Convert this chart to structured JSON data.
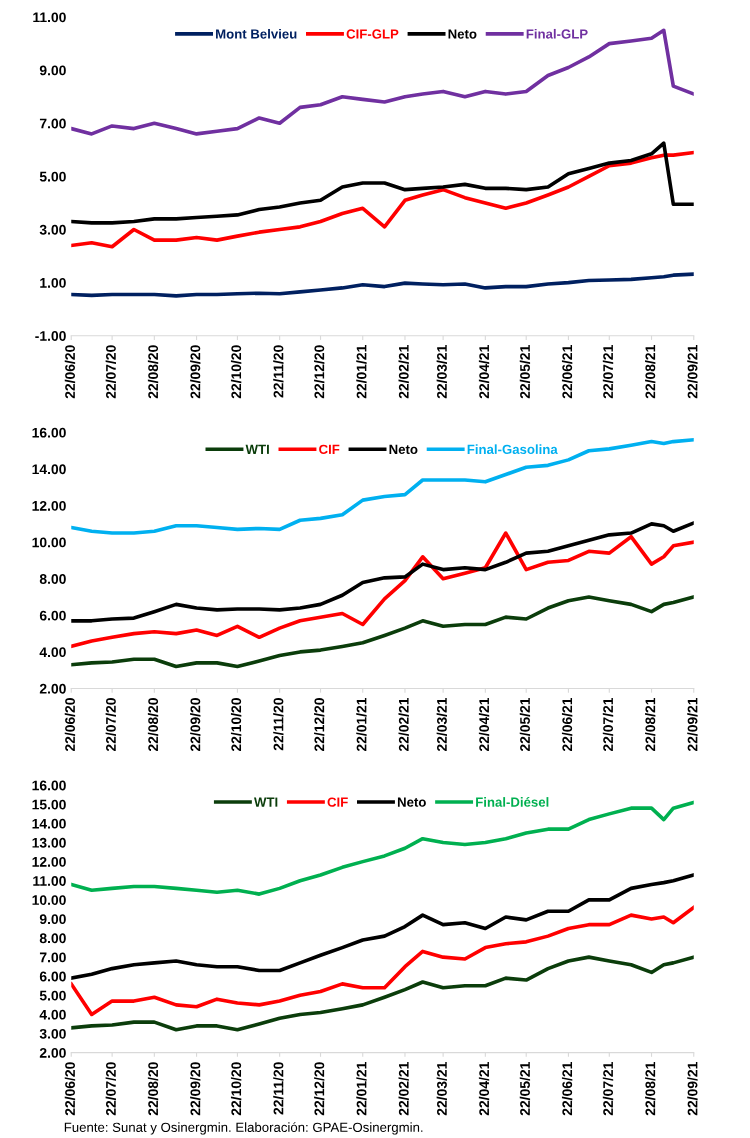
{
  "chart_data": [
    {
      "type": "line",
      "legend": "top",
      "grid": false,
      "marker": "none",
      "line_style": "solid",
      "x": [
        "2020-06-22",
        "2020-07-07",
        "2020-07-22",
        "2020-08-07",
        "2020-08-22",
        "2020-09-07",
        "2020-09-22",
        "2020-10-07",
        "2020-10-22",
        "2020-11-07",
        "2020-11-22",
        "2020-12-07",
        "2020-12-22",
        "2021-01-07",
        "2021-01-22",
        "2021-02-07",
        "2021-02-22",
        "2021-03-07",
        "2021-03-22",
        "2021-04-07",
        "2021-04-22",
        "2021-05-07",
        "2021-05-22",
        "2021-06-07",
        "2021-06-22",
        "2021-07-07",
        "2021-07-22",
        "2021-08-07",
        "2021-08-22",
        "2021-08-31",
        "2021-09-07",
        "2021-09-22"
      ],
      "xlim": [
        "2020-06-22",
        "2021-09-22"
      ],
      "xticks": [
        {
          "value": "2020-06-22",
          "label": "22/06/20"
        },
        {
          "value": "2020-07-22",
          "label": "22/07/20"
        },
        {
          "value": "2020-08-22",
          "label": "22/08/20"
        },
        {
          "value": "2020-09-22",
          "label": "22/09/20"
        },
        {
          "value": "2020-10-22",
          "label": "22/10/20"
        },
        {
          "value": "2020-11-22",
          "label": "22/11/20"
        },
        {
          "value": "2020-12-22",
          "label": "22/12/20"
        },
        {
          "value": "2021-01-22",
          "label": "22/01/21"
        },
        {
          "value": "2021-02-22",
          "label": "22/02/21"
        },
        {
          "value": "2021-03-22",
          "label": "22/03/21"
        },
        {
          "value": "2021-04-22",
          "label": "22/04/21"
        },
        {
          "value": "2021-05-22",
          "label": "22/05/21"
        },
        {
          "value": "2021-06-22",
          "label": "22/06/21"
        },
        {
          "value": "2021-07-22",
          "label": "22/07/21"
        },
        {
          "value": "2021-08-22",
          "label": "22/08/21"
        },
        {
          "value": "2021-09-22",
          "label": "22/09/21"
        }
      ],
      "ylim": [
        -1,
        11
      ],
      "yticks": [
        {
          "value": -1,
          "label": "-1.00"
        },
        {
          "value": 1,
          "label": "1.00"
        },
        {
          "value": 3,
          "label": "3.00"
        },
        {
          "value": 5,
          "label": "5.00"
        },
        {
          "value": 7,
          "label": "7.00"
        },
        {
          "value": 9,
          "label": "9.00"
        },
        {
          "value": 11,
          "label": "11.00"
        }
      ],
      "series": [
        {
          "name": "Mont Belvieu",
          "color": "#002060",
          "values": [
            0.55,
            0.52,
            0.55,
            0.55,
            0.55,
            0.5,
            0.55,
            0.55,
            0.58,
            0.6,
            0.58,
            0.65,
            0.72,
            0.8,
            0.92,
            0.85,
            0.98,
            0.95,
            0.92,
            0.95,
            0.8,
            0.85,
            0.85,
            0.95,
            1.0,
            1.08,
            1.1,
            1.12,
            1.18,
            1.22,
            1.28,
            1.32
          ]
        },
        {
          "name": "CIF-GLP",
          "color": "#ff0000",
          "values": [
            2.4,
            2.5,
            2.35,
            3.0,
            2.6,
            2.6,
            2.7,
            2.6,
            2.75,
            2.9,
            3.0,
            3.1,
            3.3,
            3.6,
            3.8,
            3.1,
            4.1,
            4.3,
            4.5,
            4.2,
            4.0,
            3.8,
            4.0,
            4.3,
            4.6,
            5.0,
            5.4,
            5.5,
            5.7,
            5.8,
            5.8,
            5.9
          ]
        },
        {
          "name": "Neto",
          "color": "#000000",
          "values": [
            3.3,
            3.25,
            3.25,
            3.3,
            3.4,
            3.4,
            3.45,
            3.5,
            3.55,
            3.75,
            3.85,
            4.0,
            4.1,
            4.6,
            4.75,
            4.75,
            4.5,
            4.55,
            4.6,
            4.7,
            4.55,
            4.55,
            4.5,
            4.6,
            5.1,
            5.3,
            5.5,
            5.6,
            5.85,
            6.25,
            3.95,
            3.95
          ]
        },
        {
          "name": "Final-GLP",
          "color": "#7030a0",
          "values": [
            6.8,
            6.6,
            6.9,
            6.8,
            7.0,
            6.8,
            6.6,
            6.7,
            6.8,
            7.2,
            7.0,
            7.6,
            7.7,
            8.0,
            7.9,
            7.8,
            8.0,
            8.1,
            8.2,
            8.0,
            8.2,
            8.1,
            8.2,
            8.8,
            9.1,
            9.5,
            10.0,
            10.1,
            10.2,
            10.5,
            8.4,
            8.1
          ]
        }
      ]
    },
    {
      "type": "line",
      "legend": "top",
      "grid": false,
      "marker": "none",
      "line_style": "solid",
      "x": [
        "2020-06-22",
        "2020-07-07",
        "2020-07-22",
        "2020-08-07",
        "2020-08-22",
        "2020-09-07",
        "2020-09-22",
        "2020-10-07",
        "2020-10-22",
        "2020-11-07",
        "2020-11-22",
        "2020-12-07",
        "2020-12-22",
        "2021-01-07",
        "2021-01-22",
        "2021-02-07",
        "2021-02-22",
        "2021-03-07",
        "2021-03-22",
        "2021-04-07",
        "2021-04-22",
        "2021-05-07",
        "2021-05-22",
        "2021-06-07",
        "2021-06-22",
        "2021-07-07",
        "2021-07-22",
        "2021-08-07",
        "2021-08-22",
        "2021-08-31",
        "2021-09-07",
        "2021-09-22"
      ],
      "xlim": [
        "2020-06-22",
        "2021-09-22"
      ],
      "xticks": [
        {
          "value": "2020-06-22",
          "label": "22/06/20"
        },
        {
          "value": "2020-07-22",
          "label": "22/07/20"
        },
        {
          "value": "2020-08-22",
          "label": "22/08/20"
        },
        {
          "value": "2020-09-22",
          "label": "22/09/20"
        },
        {
          "value": "2020-10-22",
          "label": "22/10/20"
        },
        {
          "value": "2020-11-22",
          "label": "22/11/20"
        },
        {
          "value": "2020-12-22",
          "label": "22/12/20"
        },
        {
          "value": "2021-01-22",
          "label": "22/01/21"
        },
        {
          "value": "2021-02-22",
          "label": "22/02/21"
        },
        {
          "value": "2021-03-22",
          "label": "22/03/21"
        },
        {
          "value": "2021-04-22",
          "label": "22/04/21"
        },
        {
          "value": "2021-05-22",
          "label": "22/05/21"
        },
        {
          "value": "2021-06-22",
          "label": "22/06/21"
        },
        {
          "value": "2021-07-22",
          "label": "22/07/21"
        },
        {
          "value": "2021-08-22",
          "label": "22/08/21"
        },
        {
          "value": "2021-09-22",
          "label": "22/09/21"
        }
      ],
      "ylim": [
        2,
        16
      ],
      "yticks": [
        {
          "value": 2,
          "label": "2.00"
        },
        {
          "value": 4,
          "label": "4.00"
        },
        {
          "value": 6,
          "label": "6.00"
        },
        {
          "value": 8,
          "label": "8.00"
        },
        {
          "value": 10,
          "label": "10.00"
        },
        {
          "value": 12,
          "label": "12.00"
        },
        {
          "value": 14,
          "label": "14.00"
        },
        {
          "value": 16,
          "label": "16.00"
        }
      ],
      "series": [
        {
          "name": "WTI",
          "color": "#0b3d0b",
          "values": [
            3.3,
            3.4,
            3.45,
            3.6,
            3.6,
            3.2,
            3.4,
            3.4,
            3.2,
            3.5,
            3.8,
            4.0,
            4.1,
            4.3,
            4.5,
            4.9,
            5.3,
            5.7,
            5.4,
            5.5,
            5.5,
            5.9,
            5.8,
            6.4,
            6.8,
            7.0,
            6.8,
            6.6,
            6.2,
            6.6,
            6.7,
            7.0
          ]
        },
        {
          "name": "CIF",
          "color": "#ff0000",
          "values": [
            4.3,
            4.6,
            4.8,
            5.0,
            5.1,
            5.0,
            5.2,
            4.9,
            5.4,
            4.8,
            5.3,
            5.7,
            5.9,
            6.1,
            5.5,
            6.9,
            7.9,
            9.2,
            8.0,
            8.3,
            8.6,
            10.5,
            8.5,
            8.9,
            9.0,
            9.5,
            9.4,
            10.3,
            8.8,
            9.2,
            9.8,
            10.0
          ]
        },
        {
          "name": "Neto",
          "color": "#000000",
          "values": [
            5.7,
            5.7,
            5.8,
            5.85,
            6.2,
            6.6,
            6.4,
            6.3,
            6.35,
            6.35,
            6.3,
            6.4,
            6.6,
            7.1,
            7.8,
            8.05,
            8.1,
            8.8,
            8.5,
            8.6,
            8.5,
            8.9,
            9.4,
            9.5,
            9.8,
            10.1,
            10.4,
            10.5,
            11.0,
            10.9,
            10.6,
            11.05
          ]
        },
        {
          "name": "Final-Gasolina",
          "color": "#00b0f0",
          "values": [
            10.8,
            10.6,
            10.5,
            10.5,
            10.6,
            10.9,
            10.9,
            10.8,
            10.7,
            10.75,
            10.7,
            11.2,
            11.3,
            11.5,
            12.3,
            12.5,
            12.6,
            13.4,
            13.4,
            13.4,
            13.3,
            13.7,
            14.1,
            14.2,
            14.5,
            15.0,
            15.1,
            15.3,
            15.5,
            15.4,
            15.5,
            15.6
          ]
        }
      ]
    },
    {
      "type": "line",
      "legend": "top",
      "grid": false,
      "marker": "none",
      "line_style": "solid",
      "x": [
        "2020-06-22",
        "2020-07-07",
        "2020-07-22",
        "2020-08-07",
        "2020-08-22",
        "2020-09-07",
        "2020-09-22",
        "2020-10-07",
        "2020-10-22",
        "2020-11-07",
        "2020-11-22",
        "2020-12-07",
        "2020-12-22",
        "2021-01-07",
        "2021-01-22",
        "2021-02-07",
        "2021-02-22",
        "2021-03-07",
        "2021-03-22",
        "2021-04-07",
        "2021-04-22",
        "2021-05-07",
        "2021-05-22",
        "2021-06-07",
        "2021-06-22",
        "2021-07-07",
        "2021-07-22",
        "2021-08-07",
        "2021-08-22",
        "2021-08-31",
        "2021-09-07",
        "2021-09-22"
      ],
      "xlim": [
        "2020-06-22",
        "2021-09-22"
      ],
      "xticks": [
        {
          "value": "2020-06-22",
          "label": "22/06/20"
        },
        {
          "value": "2020-07-22",
          "label": "22/07/20"
        },
        {
          "value": "2020-08-22",
          "label": "22/08/20"
        },
        {
          "value": "2020-09-22",
          "label": "22/09/20"
        },
        {
          "value": "2020-10-22",
          "label": "22/10/20"
        },
        {
          "value": "2020-11-22",
          "label": "22/11/20"
        },
        {
          "value": "2020-12-22",
          "label": "22/12/20"
        },
        {
          "value": "2021-01-22",
          "label": "22/01/21"
        },
        {
          "value": "2021-02-22",
          "label": "22/02/21"
        },
        {
          "value": "2021-03-22",
          "label": "22/03/21"
        },
        {
          "value": "2021-04-22",
          "label": "22/04/21"
        },
        {
          "value": "2021-05-22",
          "label": "22/05/21"
        },
        {
          "value": "2021-06-22",
          "label": "22/06/21"
        },
        {
          "value": "2021-07-22",
          "label": "22/07/21"
        },
        {
          "value": "2021-08-22",
          "label": "22/08/21"
        },
        {
          "value": "2021-09-22",
          "label": "22/09/21"
        }
      ],
      "ylim": [
        2,
        16
      ],
      "yticks": [
        {
          "value": 2,
          "label": "2.00"
        },
        {
          "value": 3,
          "label": "3.00"
        },
        {
          "value": 4,
          "label": "4.00"
        },
        {
          "value": 5,
          "label": "5.00"
        },
        {
          "value": 6,
          "label": "6.00"
        },
        {
          "value": 7,
          "label": "7.00"
        },
        {
          "value": 8,
          "label": "8.00"
        },
        {
          "value": 9,
          "label": "9.00"
        },
        {
          "value": 10,
          "label": "10.00"
        },
        {
          "value": 11,
          "label": "11.00"
        },
        {
          "value": 12,
          "label": "12.00"
        },
        {
          "value": 13,
          "label": "13.00"
        },
        {
          "value": 14,
          "label": "14.00"
        },
        {
          "value": 15,
          "label": "15.00"
        },
        {
          "value": 16,
          "label": "16.00"
        }
      ],
      "series": [
        {
          "name": "WTI",
          "color": "#0b3d0b",
          "values": [
            3.3,
            3.4,
            3.45,
            3.6,
            3.6,
            3.2,
            3.4,
            3.4,
            3.2,
            3.5,
            3.8,
            4.0,
            4.1,
            4.3,
            4.5,
            4.9,
            5.3,
            5.7,
            5.4,
            5.5,
            5.5,
            5.9,
            5.8,
            6.4,
            6.8,
            7.0,
            6.8,
            6.6,
            6.2,
            6.6,
            6.7,
            7.0
          ]
        },
        {
          "name": "CIF",
          "color": "#ff0000",
          "values": [
            5.6,
            4.0,
            4.7,
            4.7,
            4.9,
            4.5,
            4.4,
            4.8,
            4.6,
            4.5,
            4.7,
            5.0,
            5.2,
            5.6,
            5.4,
            5.4,
            6.5,
            7.3,
            7.0,
            6.9,
            7.5,
            7.7,
            7.8,
            8.1,
            8.5,
            8.7,
            8.7,
            9.2,
            9.0,
            9.1,
            8.8,
            9.6
          ]
        },
        {
          "name": "Neto",
          "color": "#000000",
          "values": [
            5.9,
            6.1,
            6.4,
            6.6,
            6.7,
            6.8,
            6.6,
            6.5,
            6.5,
            6.3,
            6.3,
            6.7,
            7.1,
            7.5,
            7.9,
            8.1,
            8.6,
            9.2,
            8.7,
            8.8,
            8.5,
            9.1,
            8.95,
            9.4,
            9.4,
            10.0,
            10.0,
            10.6,
            10.8,
            10.9,
            11.0,
            11.3
          ]
        },
        {
          "name": "Final-Diésel",
          "color": "#00b050",
          "values": [
            10.8,
            10.5,
            10.6,
            10.7,
            10.7,
            10.6,
            10.5,
            10.4,
            10.5,
            10.3,
            10.6,
            11.0,
            11.3,
            11.7,
            12.0,
            12.3,
            12.7,
            13.2,
            13.0,
            12.9,
            13.0,
            13.2,
            13.5,
            13.7,
            13.7,
            14.2,
            14.5,
            14.8,
            14.8,
            14.2,
            14.8,
            15.1
          ]
        }
      ],
      "annotations": [
        "Fuente: Sunat y Osinergmin. Elaboración: GPAE-Osinergmin."
      ]
    }
  ]
}
